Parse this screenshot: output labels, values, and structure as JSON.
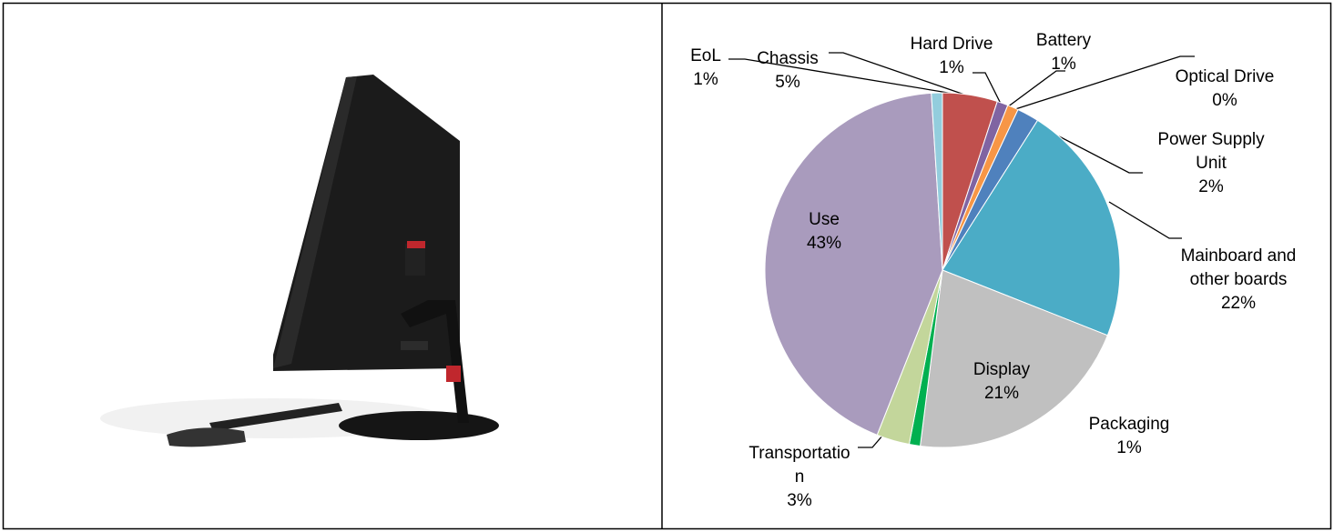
{
  "chart_data": {
    "type": "pie",
    "categories": [
      "Chassis",
      "Hard Drive",
      "Battery",
      "Optical Drive",
      "Power Supply Unit",
      "Mainboard and other boards",
      "Display",
      "Packaging",
      "Transportation",
      "Use",
      "EoL"
    ],
    "values": [
      5,
      1,
      1,
      0,
      2,
      22,
      21,
      1,
      3,
      43,
      1
    ],
    "value_labels": [
      "5%",
      "1%",
      "1%",
      "0%",
      "2%",
      "22%",
      "21%",
      "1%",
      "3%",
      "43%",
      "1%"
    ],
    "colors": [
      "#c0504d",
      "#8064a2",
      "#f79646",
      "#9bbb59",
      "#4f81bd",
      "#4bacc6",
      "#c0c0c0",
      "#00b050",
      "#c3d69b",
      "#a99bbd",
      "#93cddd"
    ]
  }
}
